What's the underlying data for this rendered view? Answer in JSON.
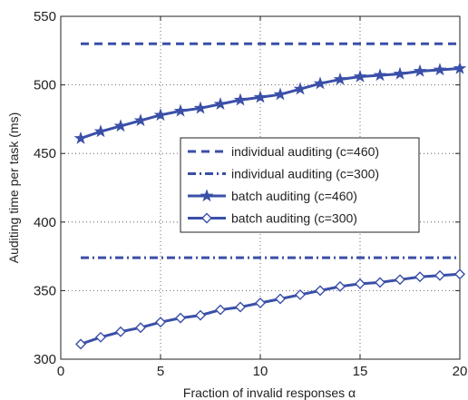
{
  "chart_data": {
    "type": "line",
    "xlabel": "Fraction of invalid responses α",
    "ylabel": "Auditing time per task (ms)",
    "xlim": [
      0,
      20
    ],
    "ylim": [
      300,
      550
    ],
    "xticks": [
      0,
      5,
      10,
      15,
      20
    ],
    "yticks": [
      300,
      350,
      400,
      450,
      500,
      550
    ],
    "grid": true,
    "legend_position": "center-right",
    "series_color": "#3a4fa8",
    "series": [
      {
        "name": "individual auditing (c=460)",
        "style": "dashed",
        "marker": "none",
        "x": [
          1,
          20
        ],
        "y": [
          530,
          530
        ]
      },
      {
        "name": "individual auditing (c=300)",
        "style": "dashdot",
        "marker": "none",
        "x": [
          1,
          20
        ],
        "y": [
          374,
          374
        ]
      },
      {
        "name": "batch auditing (c=460)",
        "style": "solid",
        "marker": "star",
        "x": [
          1,
          2,
          3,
          4,
          5,
          6,
          7,
          8,
          9,
          10,
          11,
          12,
          13,
          14,
          15,
          16,
          17,
          18,
          19,
          20
        ],
        "y": [
          461,
          466,
          470,
          474,
          478,
          481,
          483,
          486,
          489,
          491,
          493,
          497,
          501,
          504,
          506,
          507,
          508,
          510,
          511,
          512
        ]
      },
      {
        "name": "batch auditing (c=300)",
        "style": "solid",
        "marker": "diamond",
        "x": [
          1,
          2,
          3,
          4,
          5,
          6,
          7,
          8,
          9,
          10,
          11,
          12,
          13,
          14,
          15,
          16,
          17,
          18,
          19,
          20
        ],
        "y": [
          311,
          316,
          320,
          323,
          327,
          330,
          332,
          336,
          338,
          341,
          344,
          347,
          350,
          353,
          355,
          356,
          358,
          360,
          361,
          362
        ]
      }
    ]
  }
}
